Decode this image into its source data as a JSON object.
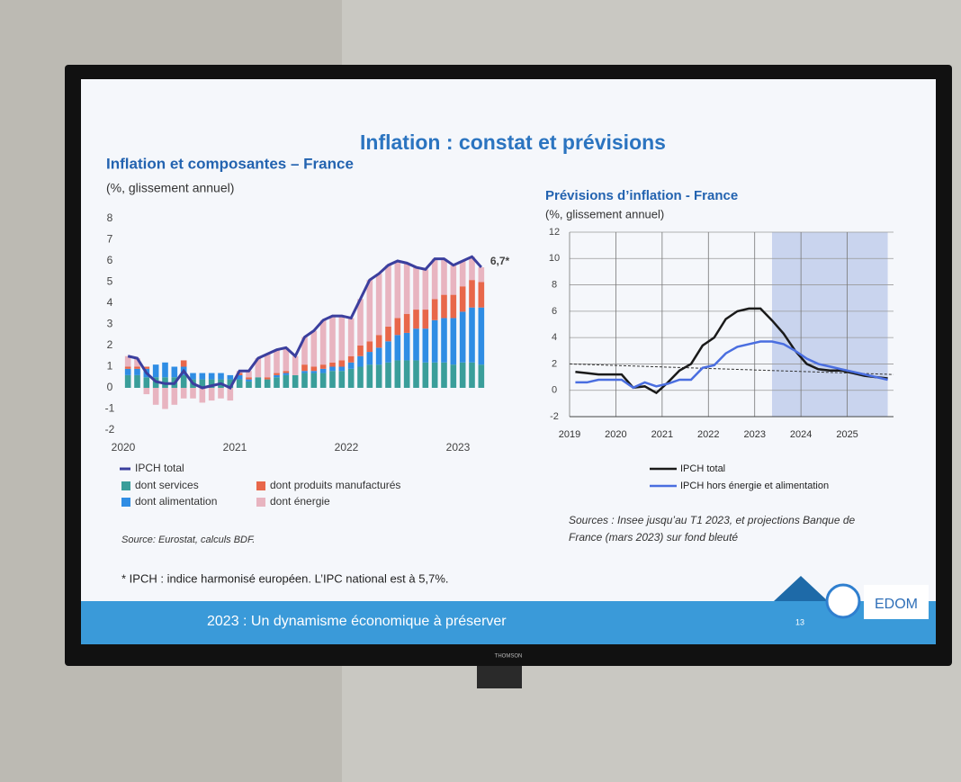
{
  "slide": {
    "title": "Inflation : constat et prévisions",
    "footnote": "* IPCH : indice harmonisé européen. L’IPC national est à 5,7%.",
    "footer": "2023 : Un dynamisme économique à préserver",
    "page_number": "13",
    "logo": "EDOM",
    "tv_brand": "THOMSON"
  },
  "chart_data": [
    {
      "type": "stacked_bar_line",
      "title": "Inflation et composantes – France",
      "subtitle": "(%, glissement annuel)",
      "source": "Source: Eurostat, calculs BDF.",
      "annotation": "6,7*",
      "categories": [
        "2020",
        null,
        null,
        null,
        null,
        null,
        null,
        null,
        null,
        null,
        null,
        null,
        "2021",
        null,
        null,
        null,
        null,
        null,
        null,
        null,
        null,
        null,
        null,
        null,
        "2022",
        null,
        null,
        null,
        null,
        null,
        null,
        null,
        null,
        null,
        null,
        null,
        "2023",
        null,
        null
      ],
      "ylim": [
        -2,
        8
      ],
      "yticks": [
        -2,
        -1,
        0,
        1,
        2,
        3,
        4,
        5,
        6,
        7,
        8
      ],
      "grid": false,
      "series": [
        {
          "name": "IPCH total",
          "color": "#3b3f9e",
          "kind": "line",
          "values": [
            1.5,
            1.4,
            0.7,
            0.3,
            0.2,
            0.2,
            0.8,
            0.2,
            0.0,
            0.1,
            0.2,
            0.0,
            0.8,
            0.8,
            1.4,
            1.6,
            1.8,
            1.9,
            1.5,
            2.4,
            2.7,
            3.2,
            3.4,
            3.4,
            3.3,
            4.2,
            5.1,
            5.4,
            5.8,
            6.0,
            5.9,
            5.7,
            5.6,
            6.1,
            6.1,
            5.8,
            6.0,
            6.2,
            5.7
          ]
        },
        {
          "name": "dont services",
          "color": "#3a9e9a",
          "kind": "bar",
          "values": [
            0.6,
            0.6,
            0.5,
            0.5,
            0.5,
            0.5,
            0.6,
            0.4,
            0.4,
            0.4,
            0.4,
            0.4,
            0.4,
            0.3,
            0.5,
            0.4,
            0.5,
            0.6,
            0.6,
            0.7,
            0.7,
            0.7,
            0.8,
            0.8,
            0.9,
            1.0,
            1.1,
            1.1,
            1.2,
            1.3,
            1.3,
            1.3,
            1.2,
            1.2,
            1.2,
            1.1,
            1.2,
            1.2,
            1.1
          ]
        },
        {
          "name": "dont alimentation",
          "color": "#2f8de4",
          "kind": "bar",
          "values": [
            0.3,
            0.3,
            0.4,
            0.6,
            0.7,
            0.5,
            0.4,
            0.3,
            0.3,
            0.3,
            0.3,
            0.2,
            0.2,
            0.1,
            0.0,
            0.0,
            0.1,
            0.1,
            0.0,
            0.1,
            0.1,
            0.2,
            0.2,
            0.2,
            0.3,
            0.5,
            0.6,
            0.8,
            1.0,
            1.2,
            1.3,
            1.5,
            1.6,
            2.0,
            2.1,
            2.2,
            2.4,
            2.6,
            2.7
          ]
        },
        {
          "name": "dont produits manufacturés",
          "color": "#e8674a",
          "kind": "bar",
          "values": [
            0.1,
            0.1,
            0.1,
            0.0,
            0.0,
            0.0,
            0.3,
            0.0,
            0.0,
            0.0,
            0.0,
            0.0,
            0.1,
            0.1,
            0.0,
            0.1,
            0.1,
            0.1,
            0.0,
            0.3,
            0.2,
            0.2,
            0.2,
            0.3,
            0.3,
            0.5,
            0.5,
            0.6,
            0.7,
            0.8,
            0.9,
            0.9,
            0.9,
            1.0,
            1.1,
            1.1,
            1.2,
            1.3,
            1.2
          ]
        },
        {
          "name": "dont énergie",
          "color": "#e8b4c0",
          "kind": "bar",
          "values": [
            0.5,
            0.4,
            -0.3,
            -0.8,
            -1.0,
            -0.8,
            -0.5,
            -0.5,
            -0.7,
            -0.6,
            -0.5,
            -0.6,
            0.1,
            0.3,
            0.9,
            1.1,
            1.1,
            1.1,
            0.9,
            1.3,
            1.7,
            2.1,
            2.2,
            2.1,
            1.8,
            2.2,
            2.9,
            2.9,
            2.9,
            2.7,
            2.4,
            2.0,
            1.9,
            1.9,
            1.7,
            1.4,
            1.2,
            1.1,
            0.7
          ]
        }
      ]
    },
    {
      "type": "line",
      "title": "Prévisions d’inflation - France",
      "subtitle": "(%, glissement annuel)",
      "source_lines": [
        "Sources : Insee jusqu’au T1 2023, et projections Banque de",
        "France (mars 2023) sur fond bleuté"
      ],
      "categories": [
        "2019",
        null,
        null,
        null,
        "2020",
        null,
        null,
        null,
        "2021",
        null,
        null,
        null,
        "2022",
        null,
        null,
        null,
        "2023",
        null,
        null,
        null,
        "2024",
        null,
        null,
        null,
        "2025",
        null,
        null,
        null
      ],
      "ylim": [
        -2,
        12
      ],
      "yticks": [
        -2,
        0,
        2,
        4,
        6,
        8,
        10,
        12
      ],
      "grid": true,
      "shaded_range": [
        17,
        27
      ],
      "trend_line": {
        "values": [
          2.0,
          1.2
        ],
        "color": "#333333"
      },
      "series": [
        {
          "name": "IPCH total",
          "color": "#1a1a1a",
          "values": [
            1.4,
            1.3,
            1.2,
            1.2,
            1.2,
            0.2,
            0.3,
            -0.2,
            0.6,
            1.5,
            2.0,
            3.4,
            4.0,
            5.4,
            6.0,
            6.2,
            6.2,
            5.3,
            4.3,
            3.0,
            2.0,
            1.6,
            1.5,
            1.5,
            1.3,
            1.1,
            1.0,
            0.9
          ]
        },
        {
          "name": "IPCH hors énergie et alimentation",
          "color": "#4a6ee0",
          "values": [
            0.6,
            0.6,
            0.8,
            0.8,
            0.8,
            0.2,
            0.6,
            0.3,
            0.5,
            0.8,
            0.8,
            1.7,
            1.9,
            2.8,
            3.3,
            3.5,
            3.7,
            3.7,
            3.5,
            3.0,
            2.4,
            2.0,
            1.8,
            1.6,
            1.4,
            1.2,
            1.0,
            0.8
          ]
        }
      ]
    }
  ]
}
